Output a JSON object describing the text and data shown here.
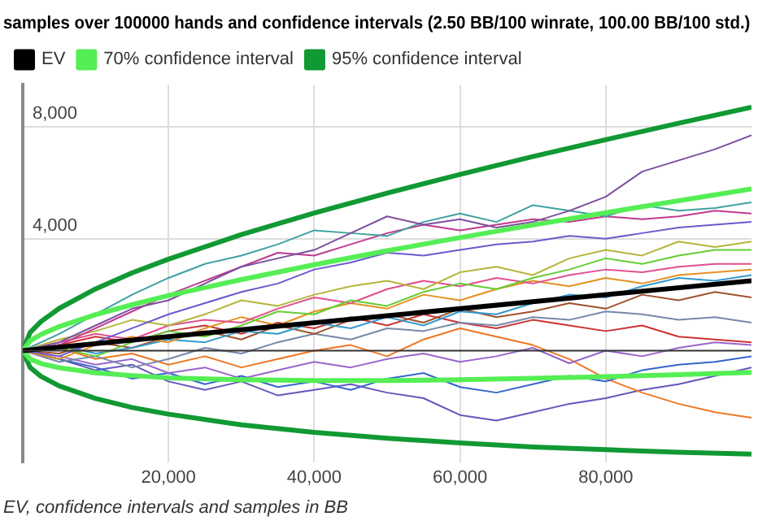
{
  "chart_data": {
    "type": "line",
    "title": "samples over 100000 hands and confidence intervals (2.50 BB/100 winrate, 100.00 BB/100 std.)",
    "annotations": [
      "EV, confidence intervals and samples in BB"
    ],
    "x": [
      0,
      5000,
      10000,
      15000,
      20000,
      25000,
      30000,
      35000,
      40000,
      45000,
      50000,
      55000,
      60000,
      65000,
      70000,
      75000,
      80000,
      85000,
      90000,
      95000,
      100000
    ],
    "xlim": [
      0,
      100000
    ],
    "xticks": [
      {
        "value": 20000,
        "label": "20,000"
      },
      {
        "value": 40000,
        "label": "40,000"
      },
      {
        "value": 60000,
        "label": "60,000"
      },
      {
        "value": 80000,
        "label": "80,000"
      }
    ],
    "ylim": [
      -4000,
      9500
    ],
    "yticks": [
      {
        "value": 4000,
        "label": "4,000"
      },
      {
        "value": 8000,
        "label": "8,000"
      }
    ],
    "ref_lines": [
      {
        "axis": "y",
        "value": 0,
        "color": "#333333"
      }
    ],
    "grid": true,
    "legend": "top left",
    "marker": "none",
    "series": [
      {
        "name": "EV",
        "color": "#000000",
        "x": [
          0,
          100000
        ],
        "values": [
          0,
          2500
        ]
      },
      {
        "name": "70% confidence interval",
        "color": "#55ee55",
        "x": [
          0,
          1000,
          2500,
          5000,
          10000,
          15000,
          20000,
          30000,
          40000,
          50000,
          60000,
          70000,
          80000,
          90000,
          100000
        ],
        "values": [
          0,
          350,
          580,
          860,
          1290,
          1640,
          1970,
          2540,
          3070,
          3570,
          4040,
          4490,
          4930,
          5360,
          5780
        ]
      },
      {
        "color": "#55ee55",
        "x": [
          0,
          1000,
          2500,
          5000,
          10000,
          15000,
          20000,
          30000,
          40000,
          50000,
          60000,
          70000,
          80000,
          90000,
          100000
        ],
        "values": [
          0,
          -300,
          -460,
          -610,
          -790,
          -890,
          -970,
          -1040,
          -1070,
          -1070,
          -1040,
          -990,
          -930,
          -860,
          -780
        ]
      },
      {
        "name": "95% confidence interval",
        "color": "#119933",
        "x": [
          0,
          1000,
          2500,
          5000,
          10000,
          15000,
          20000,
          30000,
          40000,
          50000,
          60000,
          70000,
          80000,
          90000,
          100000
        ],
        "values": [
          0,
          650,
          1040,
          1510,
          2210,
          2780,
          3270,
          4150,
          4920,
          5630,
          6300,
          6940,
          7540,
          8130,
          8700
        ]
      },
      {
        "color": "#119933",
        "x": [
          0,
          1000,
          2500,
          5000,
          10000,
          15000,
          20000,
          30000,
          40000,
          50000,
          60000,
          70000,
          80000,
          90000,
          100000
        ],
        "values": [
          0,
          -600,
          -920,
          -1260,
          -1710,
          -2030,
          -2270,
          -2650,
          -2920,
          -3130,
          -3300,
          -3440,
          -3540,
          -3630,
          -3700
        ]
      },
      {
        "color": "#7b4fa0",
        "values": [
          0,
          300,
          900,
          1500,
          1800,
          2400,
          3000,
          3300,
          3600,
          4200,
          4800,
          4500,
          4700,
          4400,
          4600,
          5000,
          5500,
          6400,
          6800,
          7200,
          7700
        ]
      },
      {
        "color": "#3fa0a0",
        "values": [
          0,
          600,
          1300,
          2000,
          2600,
          3100,
          3400,
          3800,
          4300,
          4200,
          4100,
          4600,
          4900,
          4600,
          5200,
          5000,
          4800,
          5200,
          5000,
          5100,
          5300
        ]
      },
      {
        "color": "#c0398e",
        "values": [
          0,
          200,
          800,
          1400,
          2000,
          2500,
          3000,
          3500,
          3400,
          3800,
          4200,
          4500,
          4300,
          4500,
          4700,
          4600,
          4800,
          4700,
          4800,
          5000,
          4900
        ]
      },
      {
        "color": "#6a5acd",
        "values": [
          0,
          -200,
          300,
          800,
          1300,
          1700,
          2100,
          2400,
          2900,
          3150,
          3500,
          3400,
          3600,
          3800,
          3900,
          4100,
          4000,
          4200,
          4400,
          4500,
          4600
        ]
      },
      {
        "color": "#b5b53a",
        "values": [
          0,
          400,
          700,
          1100,
          900,
          1300,
          1800,
          1600,
          2000,
          2300,
          2500,
          2200,
          2800,
          3000,
          2700,
          3300,
          3600,
          3400,
          3900,
          3700,
          3900
        ]
      },
      {
        "color": "#66cc33",
        "values": [
          0,
          100,
          -200,
          300,
          700,
          500,
          900,
          1400,
          1300,
          1800,
          1600,
          2100,
          2400,
          2200,
          2600,
          2900,
          3300,
          3100,
          3400,
          3600,
          3600
        ]
      },
      {
        "color": "#e05090",
        "values": [
          0,
          300,
          600,
          400,
          900,
          1100,
          1000,
          1500,
          1900,
          1700,
          2200,
          2500,
          2300,
          2600,
          2400,
          2700,
          2900,
          2800,
          3000,
          3100,
          3100
        ]
      },
      {
        "color": "#e69020",
        "values": [
          0,
          -300,
          200,
          500,
          300,
          800,
          1200,
          900,
          1400,
          1700,
          1500,
          2000,
          1800,
          2200,
          2500,
          2300,
          2600,
          2400,
          2700,
          2800,
          2900
        ]
      },
      {
        "color": "#3399cc",
        "values": [
          0,
          200,
          -100,
          100,
          400,
          300,
          700,
          600,
          1000,
          800,
          1200,
          900,
          1400,
          1300,
          1700,
          2000,
          1900,
          2300,
          2600,
          2500,
          2700
        ]
      },
      {
        "color": "#a0522d",
        "values": [
          0,
          -100,
          300,
          100,
          500,
          700,
          400,
          900,
          600,
          1100,
          1300,
          1000,
          1500,
          1200,
          1400,
          1700,
          1500,
          2000,
          1800,
          2100,
          1900
        ]
      },
      {
        "color": "#7788aa",
        "values": [
          0,
          -400,
          -200,
          -600,
          -300,
          100,
          -100,
          300,
          600,
          400,
          800,
          700,
          1000,
          900,
          1200,
          1100,
          1400,
          1300,
          1100,
          1200,
          1000
        ]
      },
      {
        "color": "#cc3333",
        "values": [
          0,
          200,
          500,
          300,
          700,
          900,
          600,
          1000,
          800,
          1200,
          900,
          1300,
          1000,
          800,
          1100,
          900,
          700,
          900,
          500,
          400,
          300
        ]
      },
      {
        "color": "#9966cc",
        "values": [
          0,
          -200,
          -500,
          -300,
          -800,
          -600,
          -1000,
          -700,
          -400,
          -600,
          -300,
          -100,
          -400,
          -200,
          100,
          -450,
          0,
          -200,
          100,
          300,
          200
        ]
      },
      {
        "color": "#3366cc",
        "values": [
          0,
          -300,
          -600,
          -1000,
          -800,
          -1200,
          -900,
          -1300,
          -1100,
          -1400,
          -1000,
          -800,
          -1300,
          -1500,
          -1200,
          -900,
          -1100,
          -700,
          -500,
          -400,
          -200
        ]
      },
      {
        "color": "#ee7722",
        "values": [
          0,
          100,
          -300,
          -100,
          -500,
          -200,
          -600,
          -300,
          0,
          200,
          -200,
          400,
          800,
          500,
          200,
          -300,
          -1000,
          -1500,
          -1900,
          -2200,
          -2400
        ]
      },
      {
        "color": "#6655bb",
        "values": [
          0,
          -300,
          -700,
          -500,
          -1100,
          -1400,
          -1100,
          -1600,
          -1400,
          -1200,
          -1500,
          -1700,
          -2300,
          -2500,
          -2200,
          -1900,
          -1700,
          -1400,
          -1200,
          -900,
          -600
        ]
      }
    ]
  }
}
